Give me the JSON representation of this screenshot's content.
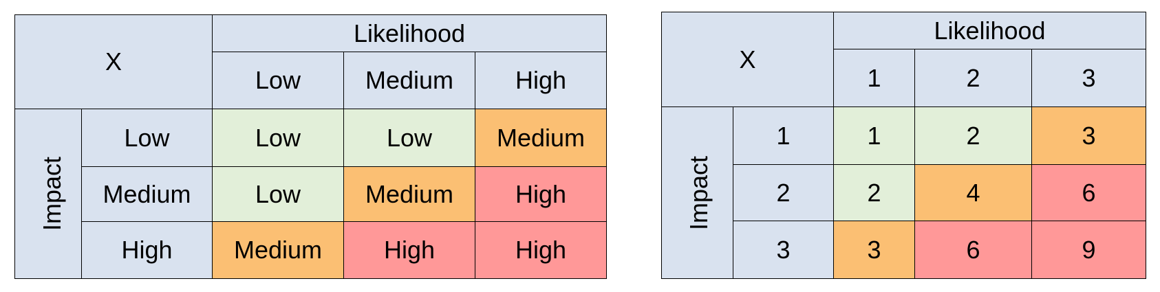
{
  "matrix_qualitative": {
    "corner": "X",
    "likelihood_label": "Likelihood",
    "impact_label": "Impact",
    "likelihood_levels": [
      "Low",
      "Medium",
      "High"
    ],
    "impact_levels": [
      "Low",
      "Medium",
      "High"
    ],
    "cells": [
      [
        "Low",
        "Low",
        "Medium"
      ],
      [
        "Low",
        "Medium",
        "High"
      ],
      [
        "Medium",
        "High",
        "High"
      ]
    ]
  },
  "matrix_numeric": {
    "corner": "X",
    "likelihood_label": "Likelihood",
    "impact_label": "Impact",
    "likelihood_levels": [
      "1",
      "2",
      "3"
    ],
    "impact_levels": [
      "1",
      "2",
      "3"
    ],
    "cells": [
      [
        "1",
        "2",
        "3"
      ],
      [
        "2",
        "4",
        "6"
      ],
      [
        "3",
        "6",
        "9"
      ]
    ]
  },
  "colors": {
    "header": "#d9e2ef",
    "low": "#e2efd9",
    "medium": "#fbbf73",
    "high": "#ff9898"
  }
}
